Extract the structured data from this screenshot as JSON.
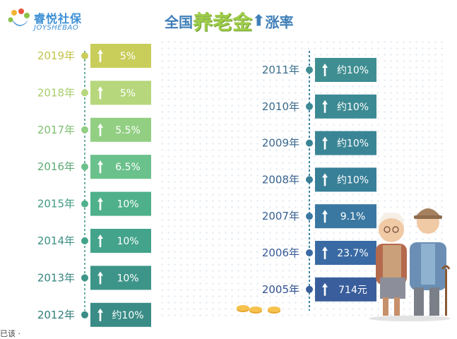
{
  "logo": {
    "cn": "睿悦社保",
    "en": "JOYSHEBAO"
  },
  "title": {
    "part1": "全国",
    "part2": "养老金",
    "part3": "涨率"
  },
  "footer": {
    "text": "已该 ·"
  },
  "colors": {
    "line_left": "#6aaea2",
    "line_right": "#3e86a7",
    "years_2019": "#c9c944",
    "years_green": "#8cc46a",
    "years_teal": "#3d8f8a",
    "years_blue": "#3a6aa0"
  },
  "chart_data": {
    "type": "table",
    "columns": [
      {
        "side": "left",
        "rows": [
          {
            "year": "2019年",
            "rate_label": "5%",
            "color": "#c9cd5a",
            "text_color": "#c2c24a"
          },
          {
            "year": "2018年",
            "rate_label": "5%",
            "color": "#b6d77c",
            "text_color": "#a7cc6a"
          },
          {
            "year": "2017年",
            "rate_label": "5.5%",
            "color": "#92cf83",
            "text_color": "#7fbf71"
          },
          {
            "year": "2016年",
            "rate_label": "6.5%",
            "color": "#6bc18b",
            "text_color": "#5daa74"
          },
          {
            "year": "2015年",
            "rate_label": "10%",
            "color": "#4fb08c",
            "text_color": "#3f9a80"
          },
          {
            "year": "2014年",
            "rate_label": "10%",
            "color": "#43a38b",
            "text_color": "#3b8f83"
          },
          {
            "year": "2013年",
            "rate_label": "10%",
            "color": "#3d9589",
            "text_color": "#36857f"
          },
          {
            "year": "2012年",
            "rate_label": "约10%",
            "color": "#3a8c86",
            "text_color": "#2f7c79"
          }
        ]
      },
      {
        "side": "right",
        "rows": [
          {
            "year": "2011年",
            "rate_label": "约10%",
            "color": "#3f8e92",
            "text_color": "#3b6f8a"
          },
          {
            "year": "2010年",
            "rate_label": "约10%",
            "color": "#3c8a93",
            "text_color": "#3b6a8a"
          },
          {
            "year": "2009年",
            "rate_label": "约10%",
            "color": "#3a8595",
            "text_color": "#3a678d"
          },
          {
            "year": "2008年",
            "rate_label": "约10%",
            "color": "#387f98",
            "text_color": "#38628f"
          },
          {
            "year": "2007年",
            "rate_label": "9.1%",
            "color": "#3a78a2",
            "text_color": "#375e92"
          },
          {
            "year": "2006年",
            "rate_label": "23.7%",
            "color": "#3a6aa3",
            "text_color": "#355a95"
          },
          {
            "year": "2005年",
            "rate_label": "714元",
            "color": "#3a5e9c",
            "text_color": "#2f5090"
          }
        ]
      }
    ]
  }
}
